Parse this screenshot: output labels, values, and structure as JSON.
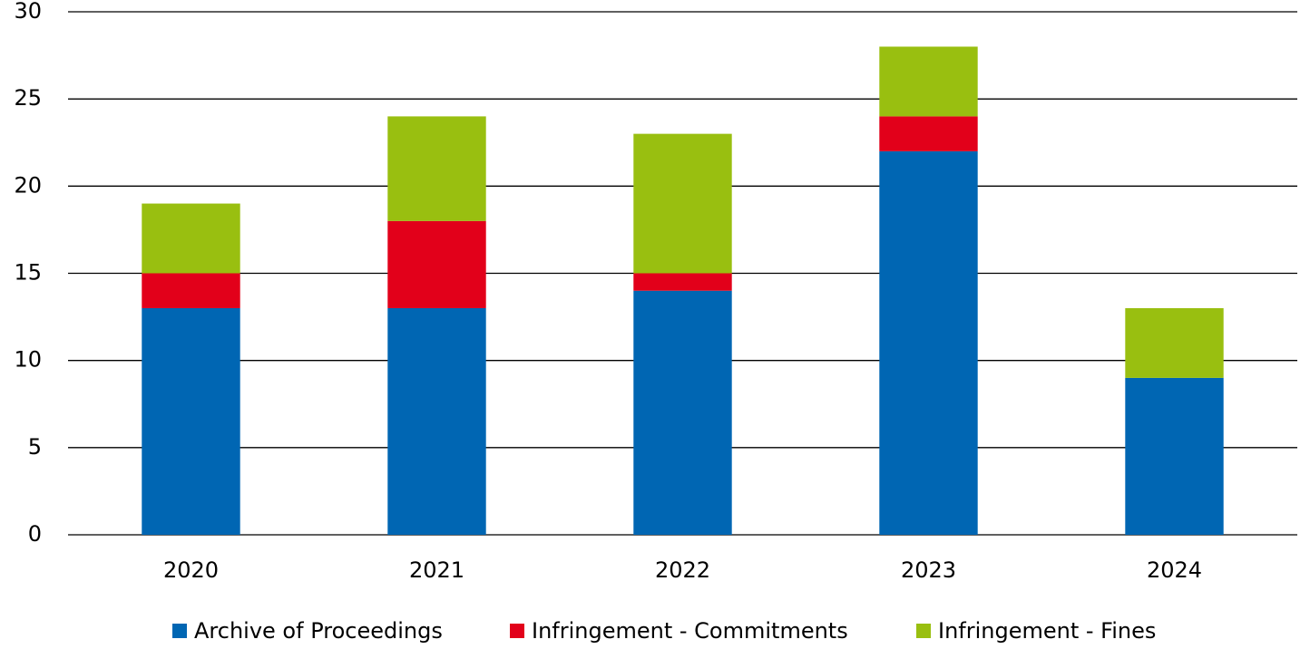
{
  "chart_data": {
    "type": "stacked_bar",
    "categories": [
      "2020",
      "2021",
      "2022",
      "2023",
      "2024"
    ],
    "series": [
      {
        "name": "Archive of Proceedings",
        "color": "#0066b3",
        "values": [
          13,
          13,
          14,
          22,
          9
        ]
      },
      {
        "name": "Infringement - Commitments",
        "color": "#e2001a",
        "values": [
          2,
          5,
          1,
          2,
          0
        ]
      },
      {
        "name": "Infringement - Fines",
        "color": "#99bf10",
        "values": [
          4,
          6,
          8,
          4,
          4
        ]
      }
    ],
    "ylim": [
      0,
      30
    ],
    "yticks": [
      0,
      5,
      10,
      15,
      20,
      25,
      30
    ],
    "grid": true,
    "legend": "bottom"
  }
}
